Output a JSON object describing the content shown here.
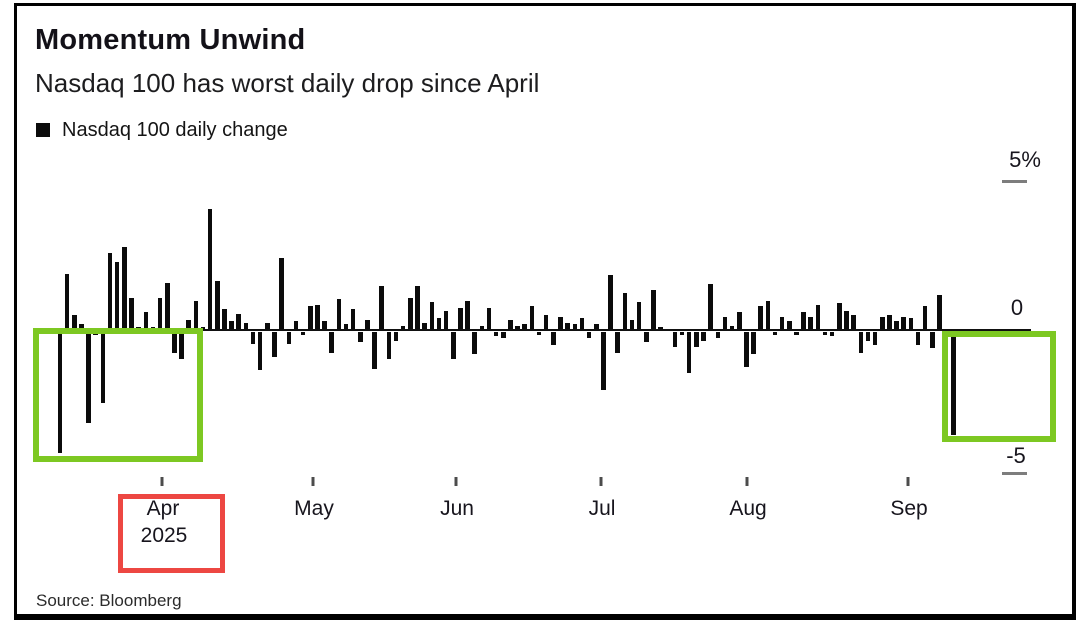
{
  "header": {
    "title": "Momentum Unwind",
    "subtitle": "Nasdaq 100 has worst daily drop since April"
  },
  "legend": {
    "label": "Nasdaq 100 daily change"
  },
  "y_axis": {
    "top_label": "5%",
    "zero_label": "0",
    "bottom_label": "-5"
  },
  "x_axis": {
    "months": [
      "Apr",
      "May",
      "Jun",
      "Jul",
      "Aug",
      "Sep"
    ],
    "year": "2025"
  },
  "footer": {
    "source": "Source: Bloomberg"
  },
  "colors": {
    "bar": "#0b0b0b",
    "highlight_green": "#7dc822",
    "highlight_red": "#ed4742",
    "tick_gray": "#7d7d7d"
  },
  "chart_data": {
    "type": "bar",
    "title": "Momentum Unwind",
    "subtitle": "Nasdaq 100 has worst daily drop since April",
    "series_name": "Nasdaq 100 daily change",
    "unit": "percent",
    "ylim": [
      -5,
      5
    ],
    "y_tick_labels": [
      "5%",
      "0",
      "-5"
    ],
    "x_tick_labels": [
      "Apr",
      "May",
      "Jun",
      "Jul",
      "Aug",
      "Sep"
    ],
    "year": "2025",
    "x_description": "daily bars, mid-March 2025 through mid-September 2025",
    "month_tick_bar_indices": [
      14,
      35,
      55,
      76,
      96,
      119
    ],
    "values": [
      -4.1,
      1.9,
      0.5,
      0.2,
      -3.1,
      -0.1,
      -2.4,
      2.6,
      2.3,
      2.8,
      1.1,
      0.1,
      0.6,
      0.1,
      1.1,
      1.6,
      -0.7,
      -0.9,
      0.35,
      1.0,
      0.1,
      4.1,
      1.65,
      0.7,
      0.3,
      0.55,
      0.25,
      -0.4,
      -1.3,
      0.25,
      -0.85,
      2.45,
      -0.4,
      0.3,
      -0.1,
      0.8,
      0.85,
      0.3,
      -0.7,
      1.05,
      0.2,
      0.7,
      -0.35,
      0.35,
      -1.25,
      1.5,
      -0.9,
      -0.3,
      0.15,
      1.1,
      1.5,
      0.25,
      0.95,
      0.4,
      0.65,
      -0.9,
      0.75,
      1.0,
      -0.75,
      0.15,
      0.75,
      -0.15,
      -0.2,
      0.35,
      0.15,
      0.2,
      0.8,
      -0.1,
      0.5,
      -0.45,
      0.45,
      0.25,
      0.2,
      0.4,
      -0.2,
      0.2,
      -1.95,
      1.85,
      -0.7,
      1.25,
      0.35,
      0.95,
      -0.35,
      1.35,
      0.1,
      0.05,
      -0.5,
      -0.1,
      -1.4,
      -0.5,
      -0.3,
      1.55,
      -0.2,
      0.45,
      0.15,
      0.6,
      -1.2,
      -0.75,
      0.8,
      1.0,
      -0.1,
      0.45,
      0.3,
      -0.1,
      0.6,
      0.45,
      0.85,
      -0.1,
      -0.15,
      0.9,
      0.65,
      0.5,
      -0.7,
      -0.3,
      -0.45,
      0.45,
      0.5,
      0.3,
      0.45,
      0.4,
      -0.45,
      0.8,
      -0.55,
      1.2,
      0.05,
      -3.5
    ],
    "legend_position": "top-left",
    "grid": false,
    "annotations": [
      {
        "shape": "rect",
        "color": "#7dc822",
        "meaning": "highlights March-April selloff bars, region 0 to about -4.5%"
      },
      {
        "shape": "rect",
        "color": "#7dc822",
        "meaning": "highlights final September drop bar (about -3.5%), region 0 to about -4.5%"
      },
      {
        "shape": "rect",
        "color": "#ed4742",
        "meaning": "highlights the Apr 2025 x-axis label"
      }
    ],
    "source": "Source: Bloomberg"
  }
}
